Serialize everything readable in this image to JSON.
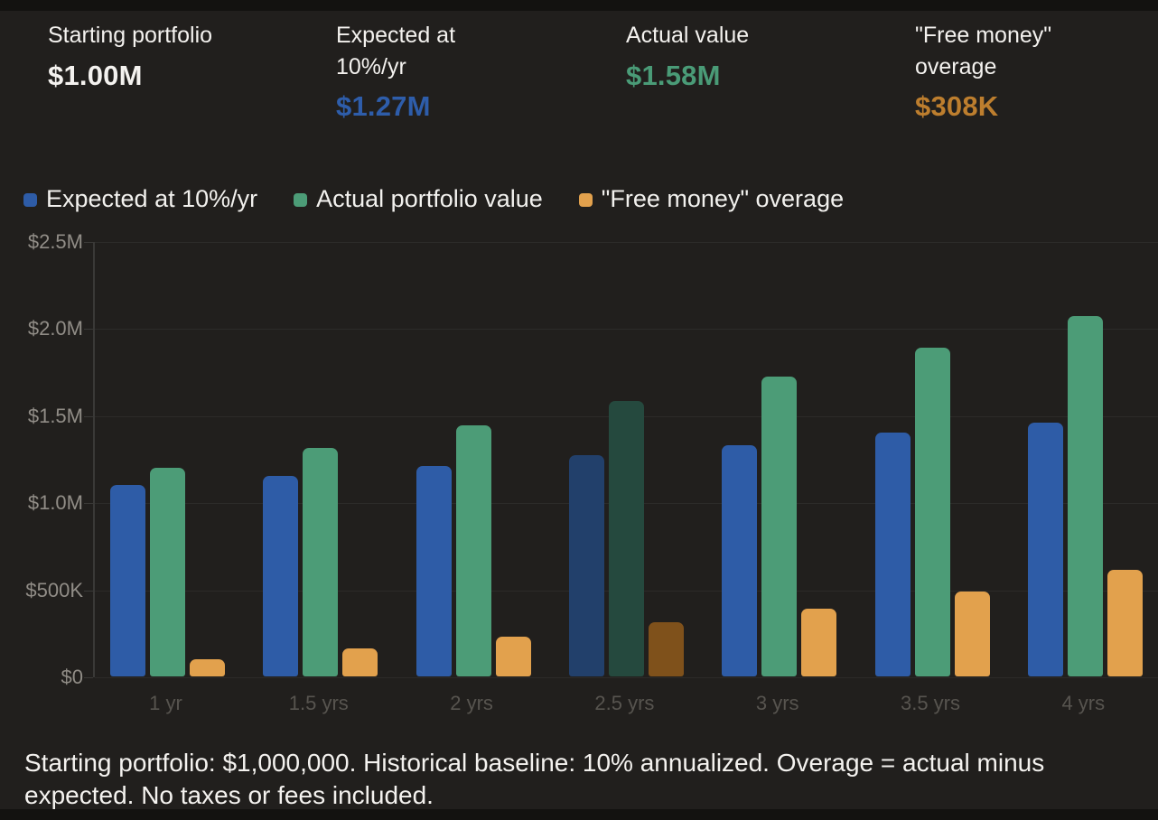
{
  "stats": [
    {
      "label": "Starting portfolio",
      "value": "$1.00M",
      "color": "#f4f2ef"
    },
    {
      "label": "Expected at\n10%/yr",
      "value": "$1.27M",
      "color": "#2e5daa"
    },
    {
      "label": "Actual value",
      "value": "$1.58M",
      "color": "#4a9b77"
    },
    {
      "label": "\"Free money\"\noverage",
      "value": "$308K",
      "color": "#bd7e2e"
    }
  ],
  "footnote": "Starting portfolio: $1,000,000. Historical baseline: 10% annualized. Overage = actual minus expected. No taxes or fees included.",
  "chart_data": {
    "type": "bar",
    "title": "",
    "units": "millions USD",
    "categories": [
      "1 yr",
      "1.5 yrs",
      "2 yrs",
      "2.5 yrs",
      "3 yrs",
      "3.5 yrs",
      "4 yrs"
    ],
    "series": [
      {
        "name": "Expected at 10%/yr",
        "color": "#2e5ca7",
        "dim_color": "#22406b",
        "values": [
          1.1,
          1.15,
          1.21,
          1.27,
          1.33,
          1.4,
          1.46
        ]
      },
      {
        "name": "Actual portfolio value",
        "color": "#4c9c77",
        "dim_color": "#25493e",
        "values": [
          1.2,
          1.31,
          1.44,
          1.58,
          1.72,
          1.89,
          2.07
        ]
      },
      {
        "name": "\"Free money\" overage",
        "color": "#e2a14d",
        "dim_color": "#7f511b",
        "values": [
          0.1,
          0.16,
          0.23,
          0.31,
          0.39,
          0.49,
          0.61
        ]
      }
    ],
    "highlighted_category_index": 3,
    "y_ticks": [
      "$2.5M",
      "$2.0M",
      "$1.5M",
      "$1.0M",
      "$500K",
      "$0"
    ],
    "y_tick_values": [
      2.5,
      2.0,
      1.5,
      1.0,
      0.5,
      0
    ],
    "ylim": [
      0,
      2.5
    ],
    "grid": true,
    "legend_position": "top"
  }
}
